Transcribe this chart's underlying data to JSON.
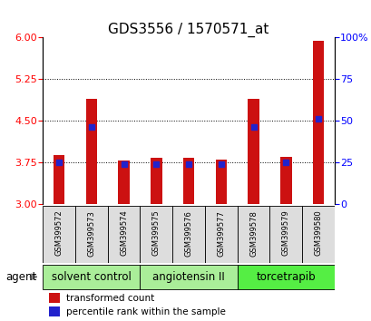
{
  "title": "GDS3556 / 1570571_at",
  "samples": [
    "GSM399572",
    "GSM399573",
    "GSM399574",
    "GSM399575",
    "GSM399576",
    "GSM399577",
    "GSM399578",
    "GSM399579",
    "GSM399580"
  ],
  "bar_values": [
    3.87,
    4.88,
    3.78,
    3.83,
    3.82,
    3.8,
    4.88,
    3.85,
    5.93
  ],
  "percentile_values": [
    3.75,
    4.38,
    3.72,
    3.72,
    3.72,
    3.71,
    4.38,
    3.75,
    4.53
  ],
  "ylim_left": [
    3,
    6
  ],
  "ylim_right": [
    0,
    100
  ],
  "yticks_left": [
    3,
    3.75,
    4.5,
    5.25,
    6
  ],
  "yticks_right": [
    0,
    25,
    50,
    75,
    100
  ],
  "bar_color": "#cc1111",
  "marker_color": "#2222cc",
  "bar_width": 0.35,
  "groups": [
    {
      "label": "solvent control",
      "samples": [
        0,
        1,
        2
      ],
      "color": "#aaee99"
    },
    {
      "label": "angiotensin II",
      "samples": [
        3,
        4,
        5
      ],
      "color": "#aaee99"
    },
    {
      "label": "torcetrapib",
      "samples": [
        6,
        7,
        8
      ],
      "color": "#55ee44"
    }
  ],
  "agent_label": "agent",
  "legend_bar_label": "transformed count",
  "legend_marker_label": "percentile rank within the sample",
  "background_plot": "white",
  "background_label": "#dddddd",
  "title_fontsize": 11,
  "tick_fontsize": 8,
  "label_fontsize": 8.5
}
